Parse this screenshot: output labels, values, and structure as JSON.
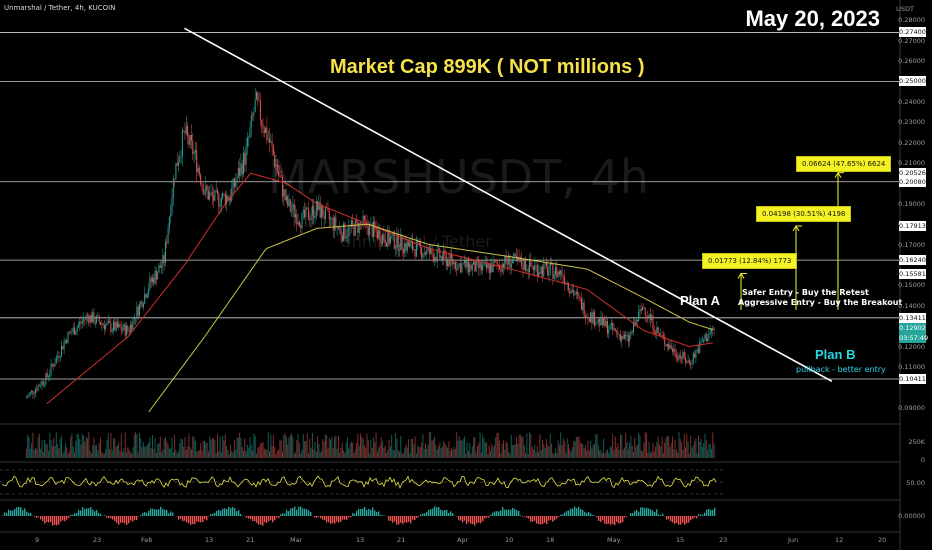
{
  "header": {
    "symbol_line": "Unmarshal / Tether, 4h, KUCOIN"
  },
  "date": "May 20, 2023",
  "headline": "Market Cap 899K ( NOT millions )",
  "watermark": {
    "symbol": "MARSHUSDT, 4h",
    "name": "Unmarshal / Tether"
  },
  "annotations": {
    "plan_a": "Plan A",
    "plan_b": "Plan B",
    "plan_b_sub": "pullback - better entry",
    "safer_entry": "Safer Entry - Buy the Retest",
    "aggressive_entry": "Aggressive Entry - Buy the Breakout"
  },
  "targets": [
    {
      "label": "0.01773 (12.84%) 1773"
    },
    {
      "label": "0.04198 (30.51%) 4198"
    },
    {
      "label": "0.06624 (47.65%) 6624"
    }
  ],
  "price_labels": [
    "0.27400",
    "0.25000",
    "0.20526",
    "0.20080",
    "0.17913",
    "0.16240",
    "0.15581",
    "0.13411",
    "0.12902",
    "03:57:49",
    "0.10411"
  ],
  "axis": {
    "unit": "USDT",
    "y_ticks": [
      "0.28000",
      "0.27000",
      "0.26000",
      "0.24000",
      "0.23000",
      "0.22000",
      "0.21000",
      "0.19000",
      "0.18000",
      "0.17000",
      "0.15000",
      "0.14000",
      "0.12000",
      "0.11000",
      "0.09000"
    ],
    "volume_ticks": [
      "250K",
      "0"
    ],
    "rsi_ticks": [
      "50.00"
    ],
    "macd_ticks": [
      "0.00000"
    ],
    "x_ticks": [
      "9",
      "23",
      "Feb",
      "13",
      "21",
      "Mar",
      "13",
      "21",
      "Apr",
      "10",
      "18",
      "May",
      "15",
      "23",
      "Jun",
      "12",
      "20"
    ]
  },
  "colors": {
    "background": "#000000",
    "headline": "#f5e14a",
    "plan_b": "#27d7e6",
    "target_box": "#f5f224",
    "ma_fast": "#d32f2f",
    "ma_slow": "#c8c24a",
    "up": "#26a69a",
    "down": "#ef5350"
  },
  "chart_data": {
    "type": "candlestick",
    "symbol": "MARSHUSDT",
    "timeframe": "4h",
    "exchange": "KUCOIN",
    "ylim": [
      0.085,
      0.285
    ],
    "series": [
      {
        "points": [
          [
            "Jan 5",
            0.095
          ],
          [
            "Jan 9",
            0.105
          ],
          [
            "Jan 13",
            0.125
          ],
          [
            "Jan 17",
            0.135
          ],
          [
            "Jan 21",
            0.13
          ],
          [
            "Jan 25",
            0.128
          ],
          [
            "Jan 29",
            0.15
          ],
          [
            "Feb 1",
            0.162
          ],
          [
            "Feb 3",
            0.205
          ],
          [
            "Feb 5",
            0.225
          ],
          [
            "Feb 7",
            0.214
          ],
          [
            "Feb 9",
            0.196
          ],
          [
            "Feb 11",
            0.192
          ],
          [
            "Feb 14",
            0.194
          ],
          [
            "Feb 17",
            0.214
          ],
          [
            "Feb 19",
            0.24
          ],
          [
            "Feb 22",
            0.218
          ],
          [
            "Feb 25",
            0.19
          ],
          [
            "Feb 28",
            0.182
          ],
          [
            "Mar 3",
            0.188
          ],
          [
            "Mar 8",
            0.176
          ],
          [
            "Mar 12",
            0.18
          ],
          [
            "Mar 16",
            0.174
          ],
          [
            "Mar 20",
            0.17
          ],
          [
            "Mar 25",
            0.166
          ],
          [
            "Mar 31",
            0.16
          ],
          [
            "Apr 5",
            0.158
          ],
          [
            "Apr 10",
            0.162
          ],
          [
            "Apr 16",
            0.158
          ],
          [
            "Apr 20",
            0.156
          ],
          [
            "Apr 25",
            0.136
          ],
          [
            "Apr 30",
            0.128
          ],
          [
            "May 3",
            0.123
          ],
          [
            "May 6",
            0.14
          ],
          [
            "May 9",
            0.126
          ],
          [
            "May 12",
            0.118
          ],
          [
            "May 15",
            0.112
          ],
          [
            "May 18",
            0.124
          ],
          [
            "May 20",
            0.129
          ]
        ]
      },
      {
        "points": [
          [
            "Jan 9",
            0.092
          ],
          [
            "Jan 25",
            0.125
          ],
          [
            "Feb 5",
            0.16
          ],
          [
            "Feb 13",
            0.19
          ],
          [
            "Feb 18",
            0.205
          ],
          [
            "Feb 25",
            0.2
          ],
          [
            "Mar 3",
            0.19
          ],
          [
            "Mar 13",
            0.18
          ],
          [
            "Mar 25",
            0.168
          ],
          [
            "Apr 10",
            0.158
          ],
          [
            "Apr 25",
            0.148
          ],
          [
            "May 6",
            0.128
          ],
          [
            "May 15",
            0.12
          ],
          [
            "May 20",
            0.122
          ]
        ]
      },
      {
        "points": [
          [
            "Jan 29",
            0.088
          ],
          [
            "Feb 9",
            0.125
          ],
          [
            "Feb 21",
            0.168
          ],
          [
            "Mar 3",
            0.178
          ],
          [
            "Mar 13",
            0.18
          ],
          [
            "Mar 25",
            0.17
          ],
          [
            "Apr 10",
            0.164
          ],
          [
            "Apr 25",
            0.158
          ],
          [
            "May 6",
            0.144
          ],
          [
            "May 15",
            0.132
          ],
          [
            "May 20",
            0.128
          ]
        ]
      }
    ],
    "trendline": {
      "from": [
        "Feb 5",
        0.276
      ],
      "to": [
        "Jun 12",
        0.103
      ]
    },
    "horizontal_levels": [
      0.274,
      0.25,
      0.2008,
      0.1624,
      0.13411,
      0.10411
    ],
    "current_price": 0.12902,
    "current_countdown": "03:57:49",
    "targets": [
      {
        "from": 0.138,
        "to": 0.15581,
        "change": 0.01773,
        "pct": 12.84,
        "ticks": 1773
      },
      {
        "from": 0.138,
        "to": 0.17913,
        "change": 0.04198,
        "pct": 30.51,
        "ticks": 4198
      },
      {
        "from": 0.138,
        "to": 0.20526,
        "change": 0.06624,
        "pct": 47.65,
        "ticks": 6624
      }
    ],
    "indicators": [
      "volume",
      "RSI",
      "MACD"
    ],
    "grid": false
  }
}
